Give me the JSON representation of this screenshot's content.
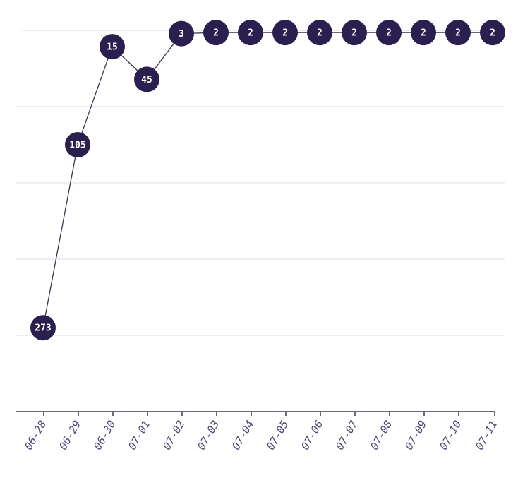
{
  "chart_data": {
    "type": "line",
    "x": [
      "06-28",
      "06-29",
      "06-30",
      "07-01",
      "07-02",
      "07-03",
      "07-04",
      "07-05",
      "07-06",
      "07-07",
      "07-08",
      "07-09",
      "07-10",
      "07-11"
    ],
    "series": [
      {
        "values": [
          273,
          105,
          15,
          45,
          3,
          2,
          2,
          2,
          2,
          2,
          2,
          2,
          2,
          2
        ],
        "color": "#2a1f4f"
      }
    ],
    "y_inverted": true,
    "ylim": [
      0,
      350
    ],
    "y_gridline_count": 6,
    "grid": "horizontal",
    "show_data_labels": true,
    "show_y_tick_labels": false,
    "marker_color": "#2a1f4f",
    "label_color": "#ffffff",
    "tick_label_color": "#4a4a78"
  }
}
